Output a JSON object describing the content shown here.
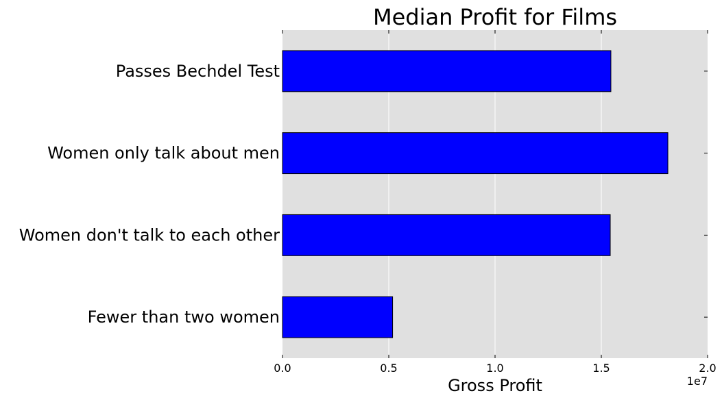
{
  "chart_data": {
    "type": "bar",
    "orientation": "horizontal",
    "title": "Median Profit for Films",
    "xlabel": "Gross Profit",
    "x_offset_label": "1e7",
    "categories": [
      "Passes Bechdel Test",
      "Women only talk about men",
      "Women don't talk to each other",
      "Fewer than two women"
    ],
    "values": [
      15450000,
      18130000,
      15420000,
      5180000
    ],
    "xlim": [
      0,
      20000000
    ],
    "xticks": [
      0,
      5000000,
      10000000,
      15000000,
      20000000
    ],
    "xtick_labels": [
      "0.0",
      "0.5",
      "1.0",
      "1.5",
      "2.0"
    ],
    "grid": true,
    "colors": {
      "bar": "#0000ff",
      "edge": "#000000",
      "background": "#e0e0e0",
      "grid": "#ffffff"
    }
  }
}
